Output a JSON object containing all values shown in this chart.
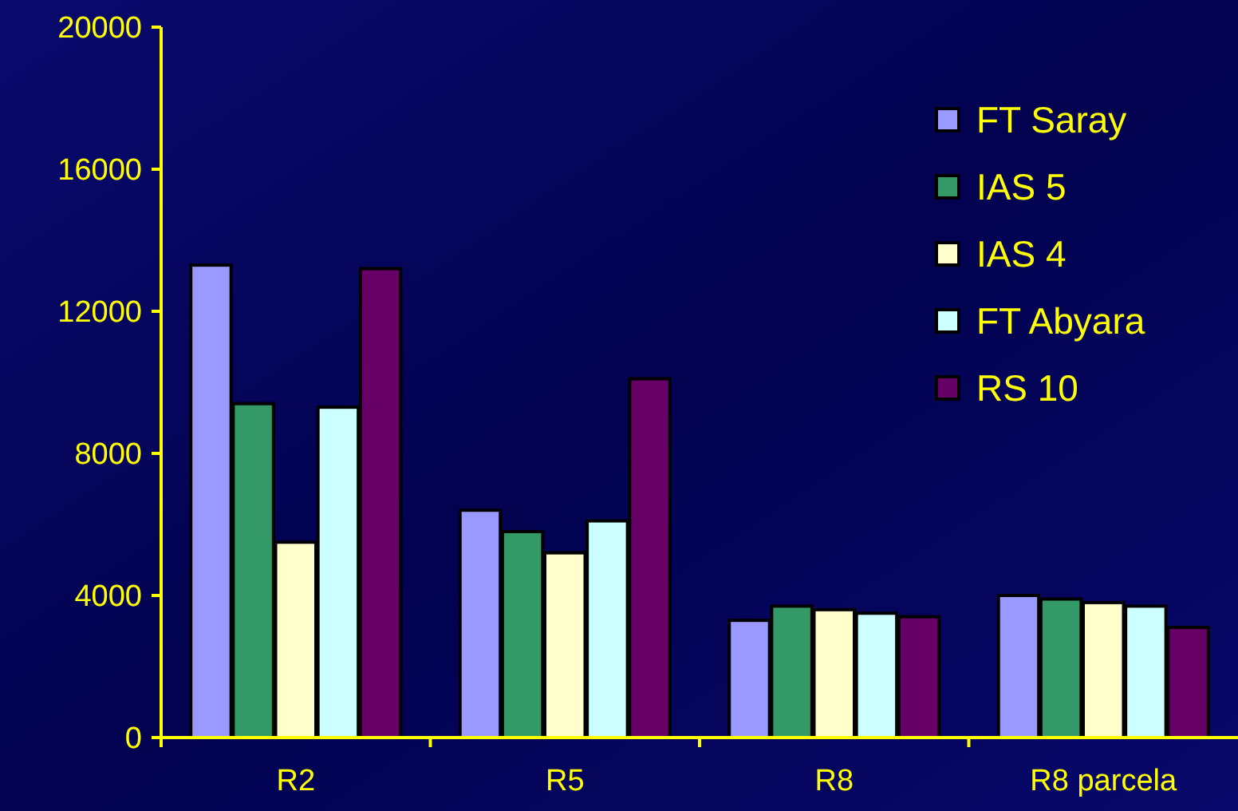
{
  "chart_data": {
    "type": "bar",
    "categories": [
      "R2",
      "R5",
      "R8",
      "R8 parcela"
    ],
    "series": [
      {
        "name": "FT Saray",
        "color": "#9999ff",
        "values": [
          13300,
          6400,
          3300,
          4000
        ]
      },
      {
        "name": "IAS 5",
        "color": "#339966",
        "values": [
          9400,
          5800,
          3700,
          3900
        ]
      },
      {
        "name": "IAS 4",
        "color": "#ffffcc",
        "values": [
          5500,
          5200,
          3600,
          3800
        ]
      },
      {
        "name": "FT Abyara",
        "color": "#ccffff",
        "values": [
          9300,
          6100,
          3500,
          3700
        ]
      },
      {
        "name": "RS 10",
        "color": "#660066",
        "values": [
          13200,
          10100,
          3400,
          3100
        ]
      }
    ],
    "ylim": [
      0,
      20000
    ],
    "yticks": [
      0,
      4000,
      8000,
      12000,
      16000,
      20000
    ],
    "grid": false,
    "legend": "top right"
  }
}
